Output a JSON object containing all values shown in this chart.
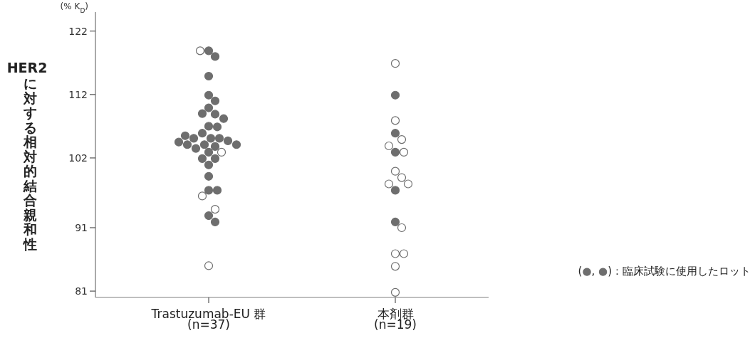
{
  "chart_data": {
    "type": "scatter",
    "ylabel": "HER2に対する相対的結合親和性",
    "categories": [
      "Trastuzumab-EU 群\n(n=37)",
      "本剤群\n(n=19)"
    ],
    "series": [
      {
        "color": "#6e6e6e",
        "x": [
          "Trastuzumab-EU 群\n(n=37)",
          "Trastuzumab-EU 群\n(n=37)",
          "Trastuzumab-EU 群\n(n=37)",
          "Trastuzumab-EU 群\n(n=37)",
          "Trastuzumab-EU 群\n(n=37)",
          "Trastuzumab-EU 群\n(n=37)",
          "Trastuzumab-EU 群\n(n=37)",
          "Trastuzumab-EU 群\n(n=37)",
          "Trastuzumab-EU 群\n(n=37)",
          "Trastuzumab-EU 群\n(n=37)",
          "Trastuzumab-EU 群\n(n=37)",
          "Trastuzumab-EU 群\n(n=37)",
          "Trastuzumab-EU 群\n(n=37)",
          "Trastuzumab-EU 群\n(n=37)",
          "Trastuzumab-EU 群\n(n=37)",
          "Trastuzumab-EU 群\n(n=37)",
          "Trastuzumab-EU 群\n(n=37)",
          "Trastuzumab-EU 群\n(n=37)",
          "Trastuzumab-EU 群\n(n=37)",
          "Trastuzumab-EU 群\n(n=37)",
          "Trastuzumab-EU 群\n(n=37)",
          "Trastuzumab-EU 群\n(n=37)",
          "Trastuzumab-EU 群\n(n=37)",
          "Trastuzumab-EU 群\n(n=37)",
          "Trastuzumab-EU 群\n(n=37)",
          "Trastuzumab-EU 群\n(n=37)",
          "Trastuzumab-EU 群\n(n=37)",
          "Trastuzumab-EU 群\n(n=37)",
          "Trastuzumab-EU 群\n(n=37)",
          "Trastuzumab-EU 群\n(n=37)",
          "Trastuzumab-EU 群\n(n=37)",
          "Trastuzumab-EU 群\n(n=37)",
          "本剤群\n(n=19)",
          "本剤群\n(n=19)",
          "本剤群\n(n=19)",
          "本剤群\n(n=19)",
          "本剤群\n(n=19)"
        ],
        "values": [
          118.9,
          118.0,
          114.9,
          111.9,
          111.0,
          109.9,
          108.9,
          109.0,
          108.2,
          107.0,
          106.9,
          105.9,
          105.1,
          105.1,
          105.1,
          104.7,
          104.1,
          104.1,
          104.1,
          103.8,
          102.9,
          101.9,
          101.9,
          100.9,
          99.1,
          96.9,
          96.9,
          92.9,
          91.9,
          104.5,
          103.5,
          105.5,
          111.9,
          105.9,
          102.9,
          96.9,
          91.9
        ]
      },
      {
        "color": "#ffffff",
        "x": [
          "Trastuzumab-EU 群\n(n=37)",
          "Trastuzumab-EU 群\n(n=37)",
          "Trastuzumab-EU 群\n(n=37)",
          "Trastuzumab-EU 群\n(n=37)",
          "Trastuzumab-EU 群\n(n=37)",
          "本剤群\n(n=19)",
          "本剤群\n(n=19)",
          "本剤群\n(n=19)",
          "本剤群\n(n=19)",
          "本剤群\n(n=19)",
          "本剤群\n(n=19)",
          "本剤群\n(n=19)",
          "本剤群\n(n=19)",
          "本剤群\n(n=19)",
          "本剤群\n(n=19)",
          "本剤群\n(n=19)",
          "本剤群\n(n=19)",
          "本剤群\n(n=19)",
          "本剤群\n(n=19)"
        ],
        "values": [
          118.9,
          102.9,
          96.0,
          93.9,
          85.0,
          116.9,
          107.9,
          104.9,
          103.9,
          102.9,
          99.9,
          98.9,
          97.9,
          97.9,
          91.0,
          86.9,
          86.9,
          84.9,
          80.8
        ]
      }
    ],
    "ylim": [
      80,
      125
    ],
    "yticks": [
      81,
      91,
      102,
      112,
      122
    ],
    "marker": "circle",
    "annotations": [
      "(% K$_{D}$)",
      "(●, ●)：臨床試験に使用したロット"
    ]
  }
}
